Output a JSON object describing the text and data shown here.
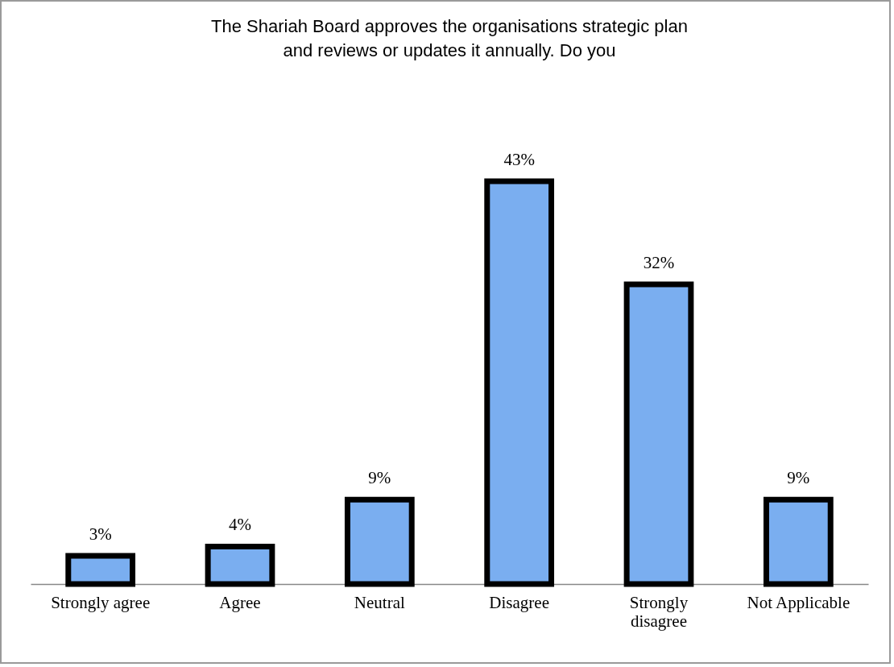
{
  "chart_data": {
    "type": "bar",
    "title": "The Shariah Board approves the organisations strategic plan and reviews or updates it annually. Do you",
    "categories": [
      "Strongly agree",
      "Agree",
      "Neutral",
      "Disagree",
      "Strongly disagree",
      "Not Applicable"
    ],
    "values": [
      3,
      4,
      9,
      43,
      32,
      9
    ],
    "value_labels": [
      "3%",
      "4%",
      "9%",
      "43%",
      "32%",
      "9%"
    ],
    "color": "#7aaef0"
  }
}
